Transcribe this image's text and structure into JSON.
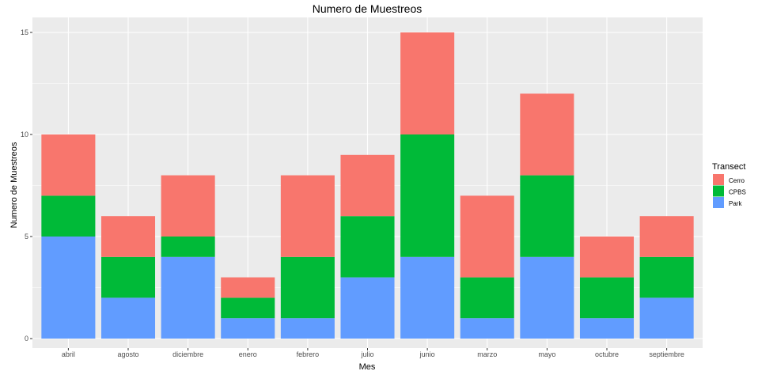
{
  "chart_data": {
    "type": "bar",
    "stacked": true,
    "title": "Numero de Muestreos",
    "xlabel": "Mes",
    "ylabel": "Numero de Muestreos",
    "ylim": [
      0,
      15
    ],
    "yticks": [
      0,
      5,
      10,
      15
    ],
    "grid": true,
    "legend": {
      "title": "Transect",
      "placement": "right"
    },
    "categories": [
      "abril",
      "agosto",
      "diciembre",
      "enero",
      "febrero",
      "julio",
      "junio",
      "marzo",
      "mayo",
      "octubre",
      "septiembre"
    ],
    "series": [
      {
        "name": "Park",
        "color": "#619CFF",
        "values": [
          5,
          2,
          4,
          1,
          1,
          3,
          4,
          1,
          4,
          1,
          2
        ]
      },
      {
        "name": "CPBS",
        "color": "#00BA38",
        "values": [
          2,
          2,
          1,
          1,
          3,
          3,
          6,
          2,
          4,
          2,
          2
        ]
      },
      {
        "name": "Cerro",
        "color": "#F8766D",
        "values": [
          3,
          2,
          3,
          1,
          4,
          3,
          5,
          4,
          4,
          2,
          2
        ]
      }
    ],
    "legend_order": [
      "Cerro",
      "CPBS",
      "Park"
    ],
    "panel_background": "#EBEBEB",
    "grid_color": "#FFFFFF"
  }
}
